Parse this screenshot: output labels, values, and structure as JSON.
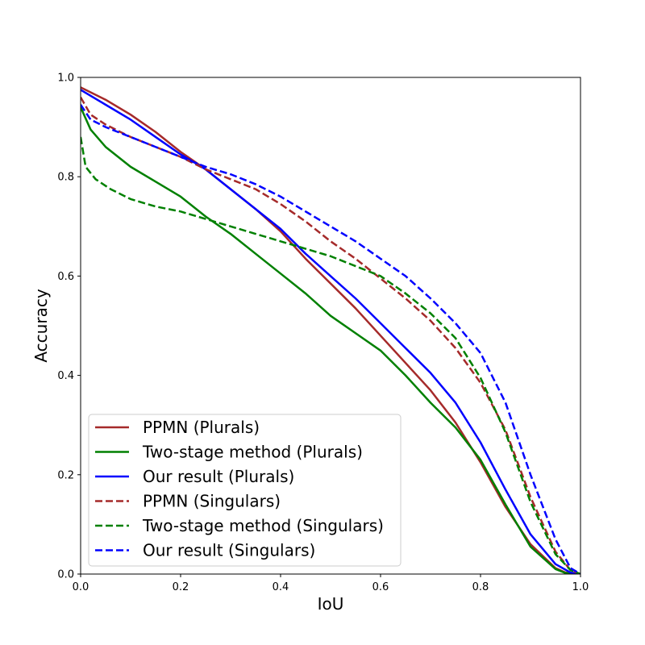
{
  "chart_data": {
    "type": "line",
    "xlabel": "IoU",
    "ylabel": "Accuracy",
    "xlim": [
      0,
      1
    ],
    "ylim": [
      0,
      1
    ],
    "xticks": [
      "0.0",
      "0.2",
      "0.4",
      "0.6",
      "0.8",
      "1.0"
    ],
    "yticks": [
      "0.0",
      "0.2",
      "0.4",
      "0.6",
      "0.8",
      "1.0"
    ],
    "grid": false,
    "legend_position": "lower-left",
    "series": [
      {
        "name": "PPMN (Plurals)",
        "color": "#a52a2a",
        "dash": "solid",
        "points": [
          [
            0,
            0.98
          ],
          [
            0.05,
            0.955
          ],
          [
            0.1,
            0.925
          ],
          [
            0.15,
            0.89
          ],
          [
            0.2,
            0.85
          ],
          [
            0.25,
            0.815
          ],
          [
            0.3,
            0.775
          ],
          [
            0.35,
            0.735
          ],
          [
            0.4,
            0.69
          ],
          [
            0.45,
            0.635
          ],
          [
            0.5,
            0.585
          ],
          [
            0.55,
            0.535
          ],
          [
            0.6,
            0.48
          ],
          [
            0.65,
            0.425
          ],
          [
            0.7,
            0.37
          ],
          [
            0.75,
            0.305
          ],
          [
            0.8,
            0.225
          ],
          [
            0.85,
            0.135
          ],
          [
            0.9,
            0.06
          ],
          [
            0.95,
            0.012
          ],
          [
            0.97,
            0.003
          ],
          [
            1.0,
            0.0
          ]
        ]
      },
      {
        "name": "Two-stage method (Plurals)",
        "color": "#008000",
        "dash": "solid",
        "points": [
          [
            0,
            0.94
          ],
          [
            0.02,
            0.895
          ],
          [
            0.05,
            0.86
          ],
          [
            0.1,
            0.82
          ],
          [
            0.15,
            0.79
          ],
          [
            0.2,
            0.76
          ],
          [
            0.25,
            0.72
          ],
          [
            0.3,
            0.685
          ],
          [
            0.35,
            0.645
          ],
          [
            0.4,
            0.605
          ],
          [
            0.45,
            0.565
          ],
          [
            0.5,
            0.52
          ],
          [
            0.55,
            0.485
          ],
          [
            0.6,
            0.45
          ],
          [
            0.65,
            0.4
          ],
          [
            0.7,
            0.345
          ],
          [
            0.75,
            0.295
          ],
          [
            0.8,
            0.23
          ],
          [
            0.85,
            0.14
          ],
          [
            0.9,
            0.055
          ],
          [
            0.95,
            0.01
          ],
          [
            0.97,
            0.002
          ],
          [
            1.0,
            0.0
          ]
        ]
      },
      {
        "name": "Our result (Plurals)",
        "color": "#0000ff",
        "dash": "solid",
        "points": [
          [
            0,
            0.975
          ],
          [
            0.05,
            0.945
          ],
          [
            0.1,
            0.915
          ],
          [
            0.15,
            0.88
          ],
          [
            0.2,
            0.845
          ],
          [
            0.25,
            0.815
          ],
          [
            0.3,
            0.775
          ],
          [
            0.35,
            0.735
          ],
          [
            0.4,
            0.695
          ],
          [
            0.45,
            0.645
          ],
          [
            0.5,
            0.6
          ],
          [
            0.55,
            0.555
          ],
          [
            0.6,
            0.505
          ],
          [
            0.65,
            0.455
          ],
          [
            0.7,
            0.405
          ],
          [
            0.75,
            0.345
          ],
          [
            0.8,
            0.265
          ],
          [
            0.85,
            0.17
          ],
          [
            0.9,
            0.08
          ],
          [
            0.95,
            0.02
          ],
          [
            0.98,
            0.003
          ],
          [
            1.0,
            0.0
          ]
        ]
      },
      {
        "name": "PPMN (Singulars)",
        "color": "#a52a2a",
        "dash": "dashed",
        "points": [
          [
            0,
            0.96
          ],
          [
            0.02,
            0.925
          ],
          [
            0.05,
            0.905
          ],
          [
            0.1,
            0.88
          ],
          [
            0.15,
            0.86
          ],
          [
            0.2,
            0.84
          ],
          [
            0.25,
            0.815
          ],
          [
            0.3,
            0.795
          ],
          [
            0.35,
            0.775
          ],
          [
            0.4,
            0.745
          ],
          [
            0.45,
            0.71
          ],
          [
            0.5,
            0.67
          ],
          [
            0.55,
            0.635
          ],
          [
            0.6,
            0.595
          ],
          [
            0.65,
            0.555
          ],
          [
            0.7,
            0.51
          ],
          [
            0.75,
            0.455
          ],
          [
            0.8,
            0.385
          ],
          [
            0.85,
            0.29
          ],
          [
            0.9,
            0.155
          ],
          [
            0.95,
            0.045
          ],
          [
            0.98,
            0.008
          ],
          [
            1.0,
            0.0
          ]
        ]
      },
      {
        "name": "Two-stage method (Singulars)",
        "color": "#008000",
        "dash": "dashed",
        "points": [
          [
            0,
            0.88
          ],
          [
            0.01,
            0.82
          ],
          [
            0.03,
            0.795
          ],
          [
            0.06,
            0.775
          ],
          [
            0.1,
            0.755
          ],
          [
            0.15,
            0.74
          ],
          [
            0.2,
            0.73
          ],
          [
            0.25,
            0.715
          ],
          [
            0.3,
            0.7
          ],
          [
            0.35,
            0.685
          ],
          [
            0.4,
            0.67
          ],
          [
            0.45,
            0.655
          ],
          [
            0.5,
            0.64
          ],
          [
            0.55,
            0.62
          ],
          [
            0.6,
            0.6
          ],
          [
            0.65,
            0.565
          ],
          [
            0.7,
            0.525
          ],
          [
            0.75,
            0.475
          ],
          [
            0.8,
            0.395
          ],
          [
            0.85,
            0.285
          ],
          [
            0.9,
            0.145
          ],
          [
            0.95,
            0.04
          ],
          [
            0.98,
            0.008
          ],
          [
            1.0,
            0.0
          ]
        ]
      },
      {
        "name": "Our result (Singulars)",
        "color": "#0000ff",
        "dash": "dashed",
        "points": [
          [
            0,
            0.945
          ],
          [
            0.02,
            0.915
          ],
          [
            0.05,
            0.9
          ],
          [
            0.1,
            0.88
          ],
          [
            0.15,
            0.86
          ],
          [
            0.2,
            0.84
          ],
          [
            0.25,
            0.82
          ],
          [
            0.3,
            0.805
          ],
          [
            0.35,
            0.785
          ],
          [
            0.4,
            0.76
          ],
          [
            0.45,
            0.73
          ],
          [
            0.5,
            0.7
          ],
          [
            0.55,
            0.67
          ],
          [
            0.6,
            0.635
          ],
          [
            0.65,
            0.6
          ],
          [
            0.7,
            0.555
          ],
          [
            0.75,
            0.505
          ],
          [
            0.8,
            0.445
          ],
          [
            0.85,
            0.345
          ],
          [
            0.9,
            0.2
          ],
          [
            0.95,
            0.07
          ],
          [
            0.98,
            0.012
          ],
          [
            1.0,
            0.0
          ]
        ]
      }
    ]
  }
}
